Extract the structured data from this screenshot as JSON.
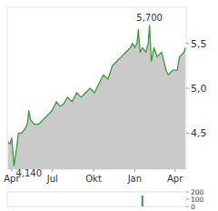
{
  "chart_data": [
    {
      "type": "line",
      "x": [
        -8,
        -4,
        0,
        5,
        10,
        15,
        22,
        30,
        35,
        38,
        42,
        50,
        60,
        70,
        80,
        90,
        95,
        100,
        108,
        115,
        125,
        135,
        145,
        155,
        165,
        175,
        185,
        195,
        205,
        215,
        225,
        235,
        245,
        255,
        265,
        270,
        275,
        280,
        283,
        287,
        292,
        300,
        305,
        308,
        312,
        318,
        325,
        335,
        340,
        345,
        350,
        360,
        370,
        375,
        385,
        388
      ],
      "series": [
        {
          "name": null,
          "color": "#3a9a3a",
          "values": [
            4.4,
            4.38,
            4.45,
            4.14,
            4.3,
            4.5,
            4.5,
            4.55,
            4.6,
            4.75,
            4.65,
            4.6,
            4.6,
            4.65,
            4.7,
            4.75,
            4.8,
            4.85,
            4.8,
            4.82,
            4.9,
            4.85,
            4.95,
            4.9,
            4.95,
            5.0,
            4.95,
            5.05,
            5.15,
            5.1,
            5.25,
            5.3,
            5.35,
            5.4,
            5.45,
            5.5,
            5.45,
            5.5,
            5.65,
            5.4,
            5.45,
            5.4,
            5.5,
            5.7,
            5.3,
            5.45,
            5.35,
            5.4,
            5.3,
            5.2,
            5.15,
            5.2,
            5.2,
            5.35,
            5.4,
            5.45
          ]
        }
      ],
      "xlim": [
        -10,
        390
      ],
      "xticks": [
        {
          "value": 0,
          "label": "Apr"
        },
        {
          "value": 91,
          "label": "Jul"
        },
        {
          "value": 183,
          "label": "Okt"
        },
        {
          "value": 275,
          "label": "Jan"
        },
        {
          "value": 365,
          "label": "Apr"
        }
      ],
      "ylim": [
        4.1,
        5.9
      ],
      "yticks": [
        {
          "value": 4.5,
          "label": "4,5"
        },
        {
          "value": 5.0,
          "label": "5,0"
        },
        {
          "value": 5.5,
          "label": "5,5"
        }
      ],
      "annotations": [
        {
          "x": 308,
          "y": 5.7,
          "label": "5,700"
        },
        {
          "x": 5,
          "y": 4.14,
          "label": "4,140"
        }
      ],
      "grid": false
    },
    {
      "type": "bar",
      "x": [
        292
      ],
      "values": [
        150
      ],
      "color": "#3a9a3a",
      "xlim": [
        -10,
        390
      ],
      "ylim": [
        0,
        200
      ],
      "yticks": [
        0,
        100,
        200
      ],
      "grid": false
    }
  ]
}
